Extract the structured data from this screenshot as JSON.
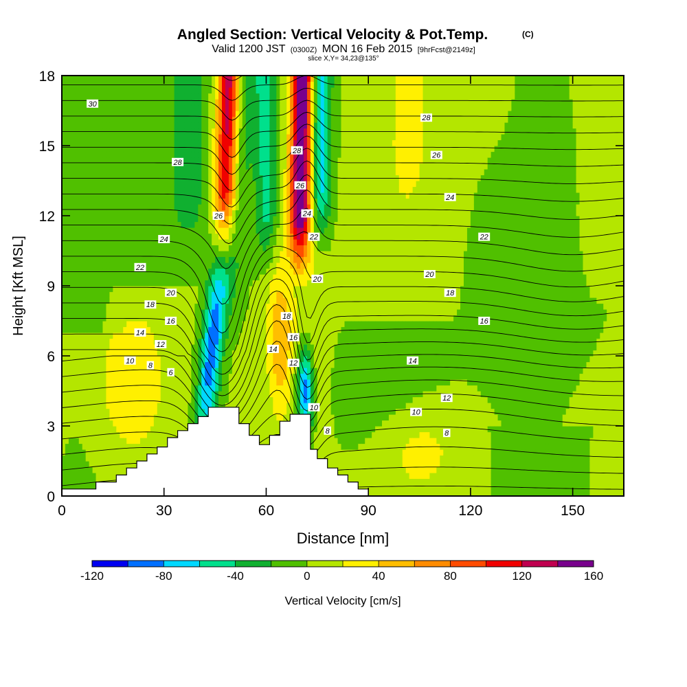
{
  "chart_data": {
    "type": "heatmap",
    "title": "Angled Section: Vertical Velocity & Pot.Temp.",
    "title_units": "(C)",
    "subtitle_pre": "Valid 1200 JST",
    "subtitle_utc": "(0300Z)",
    "subtitle_date": "MON 16 Feb 2015",
    "subtitle_fcst": "[9hrFcst@2149z]",
    "slice_text": "slice X,Y= 34,23@135°",
    "xlabel": "Distance [nm]",
    "ylabel": "Height [Kft MSL]",
    "xlim": [
      0,
      165
    ],
    "ylim": [
      0,
      18
    ],
    "x_ticks": [
      0,
      30,
      60,
      90,
      120,
      150
    ],
    "y_ticks": [
      0,
      3,
      6,
      9,
      12,
      15,
      18
    ],
    "colorbar": {
      "label": "Vertical Velocity [cm/s]",
      "tick_labels": [
        "-120",
        "-80",
        "-40",
        "0",
        "40",
        "80",
        "120",
        "160"
      ],
      "tick_values": [
        -120,
        -80,
        -40,
        0,
        40,
        80,
        120,
        160
      ],
      "bounds": [
        -120,
        -100,
        -80,
        -60,
        -40,
        -20,
        0,
        20,
        40,
        60,
        80,
        100,
        120,
        140,
        160
      ],
      "colors": [
        "#0000f0",
        "#0070ff",
        "#00d8ff",
        "#00e08c",
        "#10b030",
        "#50c000",
        "#b4e600",
        "#fff000",
        "#ffbe00",
        "#ff8c00",
        "#ff4c00",
        "#f00000",
        "#c00050",
        "#78008c"
      ]
    },
    "terrain": {
      "x": [
        0,
        10,
        10,
        16,
        16,
        19,
        19,
        22,
        22,
        25,
        25,
        28,
        28,
        31,
        31,
        34,
        34,
        37,
        37,
        40,
        40,
        43,
        43,
        46,
        46,
        52,
        52,
        55,
        55,
        58,
        58,
        61,
        61,
        64,
        64,
        67,
        67,
        73,
        73,
        75,
        75,
        78,
        78,
        81,
        81,
        84,
        84,
        87,
        87,
        90,
        90
      ],
      "y": [
        0.3,
        0.3,
        0.6,
        0.6,
        0.9,
        0.9,
        1.2,
        1.2,
        1.5,
        1.5,
        1.8,
        1.8,
        2.1,
        2.1,
        2.5,
        2.5,
        2.8,
        2.8,
        3.1,
        3.1,
        3.4,
        3.4,
        3.8,
        3.8,
        3.8,
        3.8,
        3.1,
        3.1,
        2.6,
        2.6,
        2.2,
        2.2,
        2.6,
        2.6,
        3.2,
        3.2,
        3.5,
        3.5,
        2.0,
        2.0,
        1.6,
        1.6,
        1.2,
        1.2,
        0.9,
        0.9,
        0.6,
        0.6,
        0.3,
        0.3,
        0.0
      ]
    },
    "isentropes": {
      "levels": [
        2,
        4,
        6,
        8,
        10,
        12,
        14,
        16,
        18,
        20,
        22,
        24,
        26,
        28,
        30
      ],
      "labeled": [
        6,
        8,
        10,
        12,
        14,
        16,
        18,
        20,
        22,
        24,
        26,
        28,
        30
      ]
    },
    "contour_labels": [
      {
        "text": "30",
        "x": 9,
        "y": 16.8
      },
      {
        "text": "28",
        "x": 34,
        "y": 14.3
      },
      {
        "text": "26",
        "x": 46,
        "y": 12.0
      },
      {
        "text": "24",
        "x": 30,
        "y": 11.0
      },
      {
        "text": "22",
        "x": 23,
        "y": 9.8
      },
      {
        "text": "20",
        "x": 32,
        "y": 8.7
      },
      {
        "text": "18",
        "x": 26,
        "y": 8.2
      },
      {
        "text": "16",
        "x": 32,
        "y": 7.5
      },
      {
        "text": "14",
        "x": 23,
        "y": 7.0
      },
      {
        "text": "12",
        "x": 29,
        "y": 6.5
      },
      {
        "text": "10",
        "x": 20,
        "y": 5.8
      },
      {
        "text": "8",
        "x": 26,
        "y": 5.6
      },
      {
        "text": "6",
        "x": 32,
        "y": 5.3
      },
      {
        "text": "28",
        "x": 69,
        "y": 14.8
      },
      {
        "text": "26",
        "x": 70,
        "y": 13.3
      },
      {
        "text": "24",
        "x": 72,
        "y": 12.1
      },
      {
        "text": "22",
        "x": 74,
        "y": 11.1
      },
      {
        "text": "20",
        "x": 75,
        "y": 9.3
      },
      {
        "text": "18",
        "x": 66,
        "y": 7.7
      },
      {
        "text": "16",
        "x": 68,
        "y": 6.8
      },
      {
        "text": "14",
        "x": 62,
        "y": 6.3
      },
      {
        "text": "12",
        "x": 68,
        "y": 5.7
      },
      {
        "text": "10",
        "x": 74,
        "y": 3.8
      },
      {
        "text": "8",
        "x": 78,
        "y": 2.8
      },
      {
        "text": "28",
        "x": 107,
        "y": 16.2
      },
      {
        "text": "26",
        "x": 110,
        "y": 14.6
      },
      {
        "text": "24",
        "x": 114,
        "y": 12.8
      },
      {
        "text": "22",
        "x": 124,
        "y": 11.1
      },
      {
        "text": "20",
        "x": 108,
        "y": 9.5
      },
      {
        "text": "18",
        "x": 114,
        "y": 8.7
      },
      {
        "text": "16",
        "x": 124,
        "y": 7.5
      },
      {
        "text": "14",
        "x": 103,
        "y": 5.8
      },
      {
        "text": "12",
        "x": 113,
        "y": 4.2
      },
      {
        "text": "10",
        "x": 104,
        "y": 3.6
      },
      {
        "text": "8",
        "x": 113,
        "y": 2.7
      }
    ]
  }
}
